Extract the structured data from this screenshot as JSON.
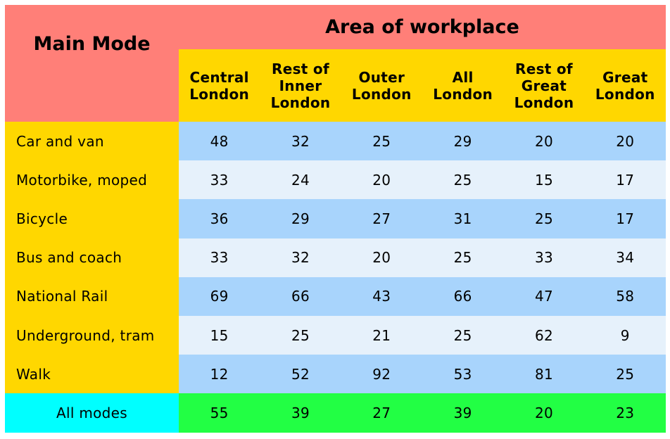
{
  "chart_data": {
    "type": "table",
    "corner_label": "Main Mode",
    "group_header": "Area of workplace",
    "columns": [
      "Central\nLondon",
      "Rest of\nInner\nLondon",
      "Outer\nLondon",
      "All\nLondon",
      "Rest of\nGreat\nLondon",
      "Great\nLondon"
    ],
    "rows": [
      {
        "label": "Car and van",
        "values": [
          48,
          32,
          25,
          29,
          20,
          20
        ]
      },
      {
        "label": "Motorbike, moped",
        "values": [
          33,
          24,
          20,
          25,
          15,
          17
        ]
      },
      {
        "label": "Bicycle",
        "values": [
          36,
          29,
          27,
          31,
          25,
          17
        ]
      },
      {
        "label": "Bus and coach",
        "values": [
          33,
          32,
          20,
          25,
          33,
          34
        ]
      },
      {
        "label": "National Rail",
        "values": [
          69,
          66,
          43,
          66,
          47,
          58
        ]
      },
      {
        "label": "Underground, tram",
        "values": [
          15,
          25,
          21,
          25,
          62,
          9
        ]
      },
      {
        "label": "Walk",
        "values": [
          12,
          52,
          92,
          53,
          81,
          25
        ]
      }
    ],
    "total_row": {
      "label": "All modes",
      "values": [
        55,
        39,
        27,
        39,
        20,
        23
      ]
    }
  },
  "colors": {
    "header_bg": "#ff7f78",
    "subheader_bg": "#ffd700",
    "band_dark": "#a8d4fc",
    "band_light": "#e6f1fb",
    "total_label_bg": "#00ffff",
    "total_values_bg": "#22ff44"
  }
}
